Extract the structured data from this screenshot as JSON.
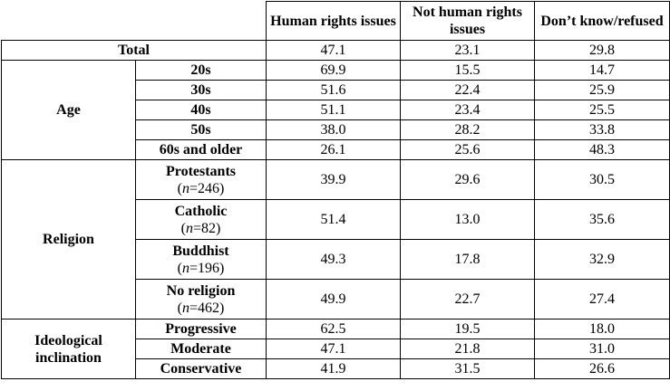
{
  "columns": [
    "Human rights issues",
    "Not human rights issues",
    "Don’t know/refused"
  ],
  "total": {
    "label": "Total",
    "values": [
      "47.1",
      "23.1",
      "29.8"
    ]
  },
  "groups": [
    {
      "label": "Age",
      "rows": [
        {
          "label": "20s",
          "n": "",
          "values": [
            "69.9",
            "15.5",
            "14.7"
          ]
        },
        {
          "label": "30s",
          "n": "",
          "values": [
            "51.6",
            "22.4",
            "25.9"
          ]
        },
        {
          "label": "40s",
          "n": "",
          "values": [
            "51.1",
            "23.4",
            "25.5"
          ]
        },
        {
          "label": "50s",
          "n": "",
          "values": [
            "38.0",
            "28.2",
            "33.8"
          ]
        },
        {
          "label": "60s and older",
          "n": "",
          "values": [
            "26.1",
            "25.6",
            "48.3"
          ]
        }
      ]
    },
    {
      "label": "Religion",
      "rows": [
        {
          "label": "Protestants",
          "n": "=246)",
          "values": [
            "39.9",
            "29.6",
            "30.5"
          ]
        },
        {
          "label": "Catholic",
          "n": "=82)",
          "values": [
            "51.4",
            "13.0",
            "35.6"
          ]
        },
        {
          "label": "Buddhist",
          "n": "=196)",
          "values": [
            "49.3",
            "17.8",
            "32.9"
          ]
        },
        {
          "label": "No religion",
          "n": "=462)",
          "values": [
            "49.9",
            "22.7",
            "27.4"
          ]
        }
      ]
    },
    {
      "label": "Ideological inclination",
      "rows": [
        {
          "label": "Progressive",
          "n": "",
          "values": [
            "62.5",
            "19.5",
            "18.0"
          ]
        },
        {
          "label": "Moderate",
          "n": "",
          "values": [
            "47.1",
            "21.8",
            "31.0"
          ]
        },
        {
          "label": "Conservative",
          "n": "",
          "values": [
            "41.9",
            "31.5",
            "26.6"
          ]
        }
      ]
    }
  ]
}
